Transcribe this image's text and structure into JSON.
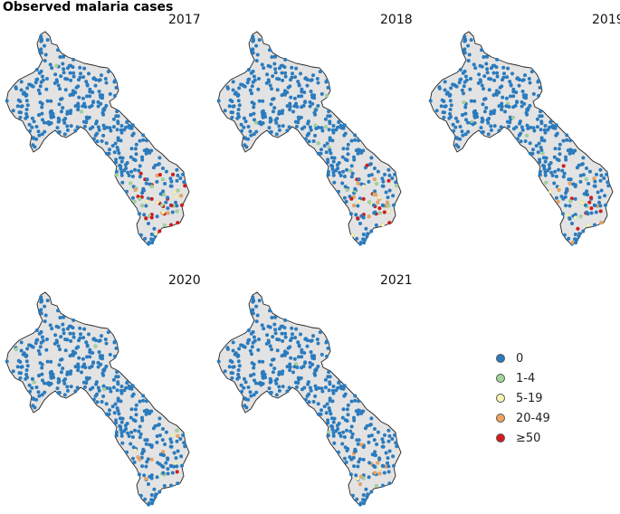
{
  "title": "Observed malaria cases",
  "panels": [
    {
      "year": "2017",
      "intensity": 1.0
    },
    {
      "year": "2018",
      "intensity": 0.85
    },
    {
      "year": "2019",
      "intensity": 0.75
    },
    {
      "year": "2020",
      "intensity": 0.3
    },
    {
      "year": "2021",
      "intensity": 0.35
    }
  ],
  "legend": [
    {
      "label": "0",
      "color": "#2b7bbd"
    },
    {
      "label": "1-4",
      "color": "#9fd69a"
    },
    {
      "label": "5-19",
      "color": "#f7f5b0"
    },
    {
      "label": "20-49",
      "color": "#f0a35e"
    },
    {
      "label": "≥50",
      "color": "#d7191c"
    }
  ],
  "map_fill": "#e3e3e3"
}
